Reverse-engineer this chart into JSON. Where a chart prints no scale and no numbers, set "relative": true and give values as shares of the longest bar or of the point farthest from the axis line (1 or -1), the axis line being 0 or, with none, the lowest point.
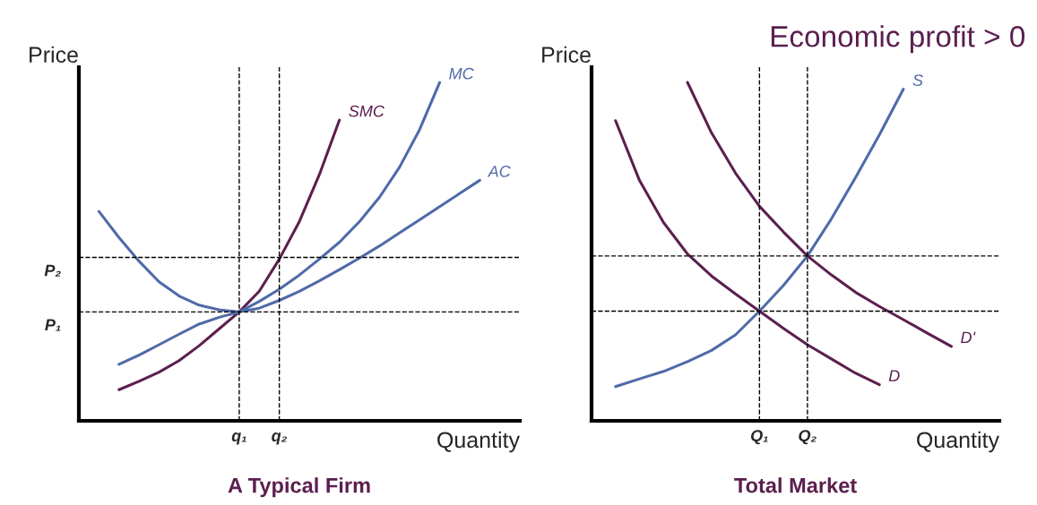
{
  "chart_data": [
    {
      "type": "line",
      "relative": true,
      "title": "A Typical Firm",
      "xlabel": "Quantity",
      "ylabel": "Price",
      "categories": [
        null,
        null,
        null,
        null,
        null,
        null,
        null,
        "q₁",
        null,
        "q₂",
        null,
        null,
        null,
        null,
        null,
        null,
        null,
        null,
        null,
        null
      ],
      "series": [
        {
          "name": "SMC",
          "color": "#5b1f4f",
          "values": [
            null,
            0.092,
            0.117,
            0.144,
            0.178,
            0.222,
            0.272,
            0.322,
            0.383,
            0.478,
            0.589,
            0.728,
            0.889,
            null,
            null,
            null,
            null,
            null,
            null,
            null
          ]
        },
        {
          "name": "MC",
          "color": "#4f6aa8",
          "values": [
            null,
            0.167,
            0.194,
            0.225,
            0.256,
            0.286,
            0.306,
            0.322,
            0.353,
            0.389,
            0.431,
            0.478,
            0.528,
            0.589,
            0.661,
            0.75,
            0.861,
            1.0,
            null,
            null
          ]
        },
        {
          "name": "AC",
          "color": "#4f6aa8",
          "values": [
            0.619,
            0.542,
            0.472,
            0.411,
            0.369,
            0.342,
            0.328,
            0.322,
            0.333,
            0.356,
            0.383,
            0.414,
            0.447,
            0.481,
            0.517,
            0.556,
            0.594,
            0.633,
            0.672,
            0.711
          ]
        }
      ],
      "ref_lines": [
        {
          "axis": "y",
          "value": 0.483,
          "label": "P₂",
          "line_style": "dashed",
          "color": "#000000"
        },
        {
          "axis": "y",
          "value": 0.322,
          "label": "P₁",
          "line_style": "dashed",
          "color": "#000000"
        }
      ]
    },
    {
      "type": "line",
      "relative": true,
      "title": "Total Market",
      "xlabel": "Quantity",
      "ylabel": "Price",
      "annotations": [
        "Economic profit > 0"
      ],
      "categories": [
        null,
        null,
        null,
        null,
        null,
        null,
        "Q₁",
        null,
        "Q₂",
        null,
        null,
        null,
        null,
        null,
        null
      ],
      "series": [
        {
          "name": "S",
          "color": "#4f6aa8",
          "values": [
            0.101,
            0.124,
            0.146,
            0.175,
            0.208,
            0.254,
            0.324,
            0.4,
            0.487,
            0.597,
            0.718,
            0.845,
            0.98,
            null,
            null
          ]
        },
        {
          "name": "D",
          "color": "#5b1f4f",
          "values": [
            0.887,
            0.71,
            0.586,
            0.493,
            0.428,
            0.375,
            0.324,
            0.273,
            0.225,
            0.183,
            0.141,
            0.107,
            null,
            null,
            null
          ]
        },
        {
          "name": "D'",
          "color": "#5b1f4f",
          "values": [
            null,
            null,
            null,
            1.0,
            0.851,
            0.732,
            0.634,
            0.558,
            0.487,
            0.431,
            0.38,
            0.338,
            0.299,
            0.259,
            0.22
          ]
        }
      ],
      "ref_lines": [
        {
          "axis": "y",
          "value": 0.487,
          "line_style": "dashed",
          "color": "#000000"
        },
        {
          "axis": "y",
          "value": 0.324,
          "line_style": "dashed",
          "color": "#000000"
        }
      ]
    }
  ]
}
